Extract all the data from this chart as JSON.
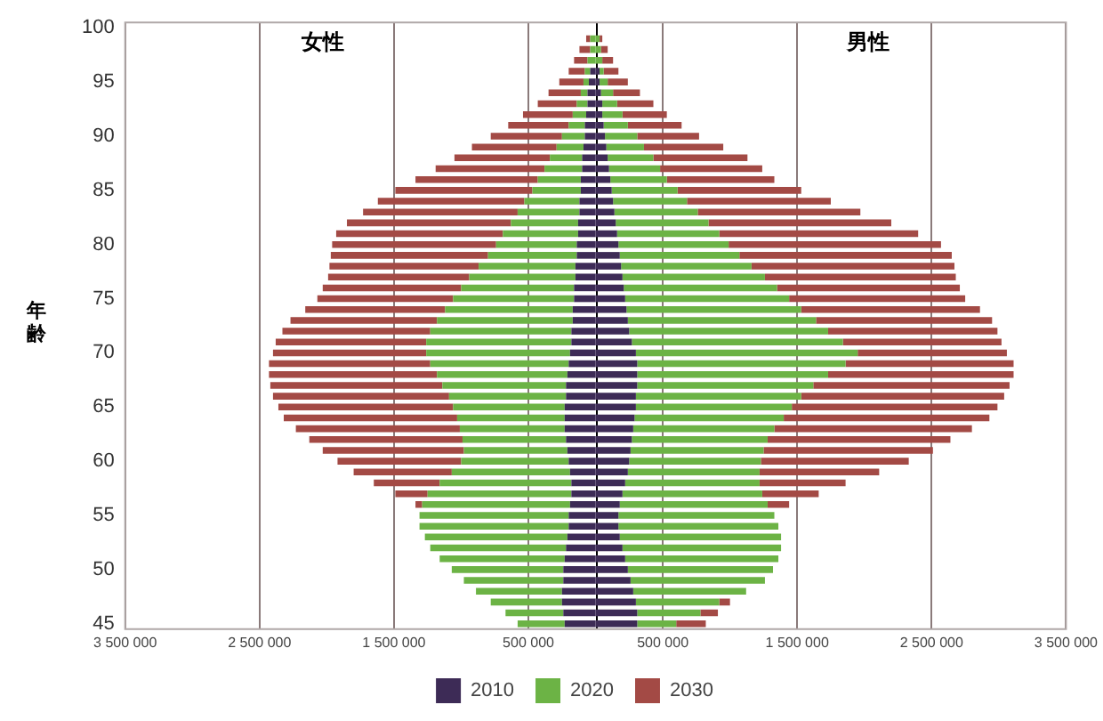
{
  "chart_data": {
    "type": "bar",
    "orientation": "horizontal",
    "stacked": true,
    "ylabel": "年齢",
    "annotations": [
      "女性",
      "男性"
    ],
    "categories": [
      "100",
      null,
      null,
      null,
      null,
      "95",
      null,
      null,
      null,
      null,
      "90",
      null,
      null,
      null,
      null,
      "85",
      null,
      null,
      null,
      null,
      "80",
      null,
      null,
      null,
      null,
      "75",
      null,
      null,
      null,
      null,
      "70",
      null,
      null,
      null,
      null,
      "65",
      null,
      null,
      null,
      null,
      "60",
      null,
      null,
      null,
      null,
      "55",
      null,
      null,
      null,
      null,
      "50",
      null,
      null,
      null,
      null,
      "45"
    ],
    "xlim": [
      -3500000,
      3500000
    ],
    "xticks": [
      {
        "value": -3500000,
        "label": "3 500 000"
      },
      {
        "value": -2500000,
        "label": "2 500 000"
      },
      {
        "value": -1500000,
        "label": "1 500 000"
      },
      {
        "value": -500000,
        "label": "500 000"
      },
      {
        "value": 500000,
        "label": "500 000"
      },
      {
        "value": 1500000,
        "label": "1 500 000"
      },
      {
        "value": 2500000,
        "label": "2 500 000"
      },
      {
        "value": 3500000,
        "label": "3 500 000"
      }
    ],
    "grid": "x",
    "legend": "bottom",
    "ref_lines": [
      {
        "axis": "x",
        "value": 0,
        "color": "#000000"
      }
    ],
    "series": [
      {
        "name": "2010",
        "color": "#3d2b56",
        "values": [
          null,
          null,
          null,
          null,
          30000,
          30000,
          40000,
          50000,
          50000,
          60000,
          70000,
          80000,
          90000,
          100000,
          110000,
          120000,
          130000,
          140000,
          150000,
          160000,
          170000,
          180000,
          190000,
          200000,
          210000,
          220000,
          230000,
          240000,
          250000,
          270000,
          300000,
          310000,
          310000,
          310000,
          300000,
          300000,
          290000,
          280000,
          270000,
          260000,
          250000,
          240000,
          220000,
          200000,
          180000,
          170000,
          170000,
          180000,
          200000,
          220000,
          240000,
          260000,
          280000,
          300000,
          310000,
          310000
        ]
      },
      {
        "color": "#3d2b56",
        "values": [
          null,
          null,
          null,
          null,
          -40000,
          -50000,
          -60000,
          -60000,
          -70000,
          -80000,
          -80000,
          -90000,
          -100000,
          -100000,
          -110000,
          -110000,
          -120000,
          -120000,
          -130000,
          -130000,
          -140000,
          -140000,
          -150000,
          -150000,
          -160000,
          -160000,
          -170000,
          -170000,
          -180000,
          -180000,
          -190000,
          -200000,
          -210000,
          -220000,
          -220000,
          -230000,
          -230000,
          -230000,
          -220000,
          -210000,
          -200000,
          -190000,
          -180000,
          -180000,
          -190000,
          -200000,
          -200000,
          -210000,
          -220000,
          -230000,
          -240000,
          -240000,
          -250000,
          -250000,
          -240000,
          -230000
        ]
      },
      {
        "name": "2020",
        "color": "#6cb345",
        "values": [
          null,
          30000,
          40000,
          50000,
          30000,
          60000,
          90000,
          110000,
          150000,
          180000,
          240000,
          280000,
          340000,
          380000,
          420000,
          490000,
          550000,
          620000,
          690000,
          760000,
          820000,
          890000,
          970000,
          1060000,
          1140000,
          1220000,
          1300000,
          1400000,
          1480000,
          1570000,
          1650000,
          1550000,
          1420000,
          1310000,
          1230000,
          1160000,
          1110000,
          1050000,
          1010000,
          990000,
          980000,
          980000,
          1000000,
          1040000,
          1100000,
          1160000,
          1190000,
          1200000,
          1180000,
          1140000,
          1080000,
          1000000,
          840000,
          620000,
          470000,
          290000
        ]
      },
      {
        "color": "#6cb345",
        "values": [
          null,
          -40000,
          -40000,
          -60000,
          -40000,
          -40000,
          -50000,
          -80000,
          -100000,
          -120000,
          -170000,
          -200000,
          -240000,
          -280000,
          -320000,
          -360000,
          -410000,
          -460000,
          -500000,
          -560000,
          -600000,
          -660000,
          -720000,
          -790000,
          -840000,
          -900000,
          -950000,
          -1010000,
          -1050000,
          -1080000,
          -1070000,
          -1030000,
          -970000,
          -920000,
          -870000,
          -830000,
          -800000,
          -780000,
          -770000,
          -770000,
          -800000,
          -880000,
          -980000,
          -1070000,
          -1100000,
          -1110000,
          -1110000,
          -1060000,
          -1010000,
          -930000,
          -830000,
          -740000,
          -640000,
          -530000,
          -430000,
          -350000
        ]
      },
      {
        "name": "2030",
        "color": "#a34a45",
        "values": [
          null,
          20000,
          50000,
          80000,
          110000,
          150000,
          200000,
          270000,
          330000,
          400000,
          460000,
          590000,
          700000,
          760000,
          800000,
          920000,
          1070000,
          1210000,
          1360000,
          1480000,
          1580000,
          1580000,
          1510000,
          1420000,
          1360000,
          1310000,
          1330000,
          1310000,
          1260000,
          1180000,
          1110000,
          1250000,
          1380000,
          1460000,
          1510000,
          1530000,
          1530000,
          1470000,
          1360000,
          1260000,
          1100000,
          890000,
          640000,
          420000,
          160000,
          null,
          null,
          null,
          null,
          null,
          null,
          null,
          null,
          80000,
          130000,
          220000
        ]
      },
      {
        "color": "#a34a45",
        "values": [
          null,
          -30000,
          -80000,
          -100000,
          -120000,
          -180000,
          -240000,
          -290000,
          -370000,
          -450000,
          -530000,
          -630000,
          -710000,
          -810000,
          -910000,
          -1020000,
          -1090000,
          -1150000,
          -1220000,
          -1240000,
          -1220000,
          -1170000,
          -1110000,
          -1050000,
          -1030000,
          -1010000,
          -1040000,
          -1090000,
          -1100000,
          -1120000,
          -1140000,
          -1200000,
          -1250000,
          -1280000,
          -1310000,
          -1300000,
          -1290000,
          -1220000,
          -1140000,
          -1050000,
          -920000,
          -730000,
          -490000,
          -240000,
          -50000,
          null,
          null,
          null,
          null,
          null,
          null,
          null,
          null,
          null,
          null,
          null
        ]
      }
    ]
  }
}
